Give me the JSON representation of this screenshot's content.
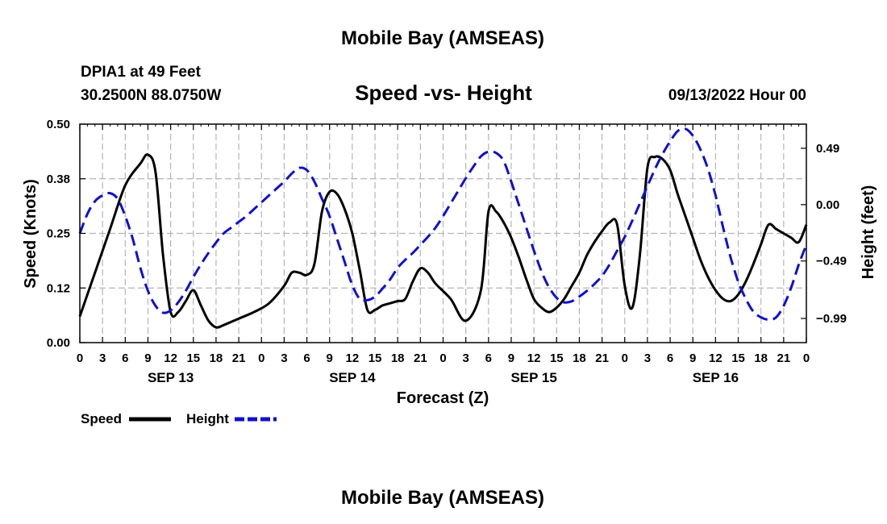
{
  "header": {
    "main_title": "Mobile Bay (AMSEAS)",
    "station": "DPIA1 at 49 Feet",
    "coords": "30.2500N  88.0750W",
    "date": "09/13/2022 Hour 00"
  },
  "footer": {
    "second_title": "Mobile Bay (AMSEAS)"
  },
  "chart_data": {
    "type": "line",
    "title": "Speed -vs- Height",
    "xlabel": "Forecast (Z)",
    "ylabel": "Speed (Knots)",
    "y2label": "Height (feet)",
    "x_range": [
      0,
      96
    ],
    "ylim": [
      0,
      0.5
    ],
    "y2lim": [
      -1.2,
      0.7
    ],
    "y_ticks": [
      0,
      0.125,
      0.25,
      0.375,
      0.5
    ],
    "y_tick_labels": [
      "0.00",
      "0.12",
      "0.25",
      "0.38",
      "0.50"
    ],
    "y2_ticks": [
      -0.99,
      -0.49,
      0.0,
      0.49
    ],
    "y2_tick_labels": [
      "−0.99",
      "−0.49",
      "0.00",
      "0.49"
    ],
    "x_ticks": [
      0,
      3,
      6,
      9,
      12,
      15,
      18,
      21,
      24,
      27,
      30,
      33,
      36,
      39,
      42,
      45,
      48,
      51,
      54,
      57,
      60,
      63,
      66,
      69,
      72,
      75,
      78,
      81,
      84,
      87,
      90,
      93,
      96
    ],
    "x_tick_labels": [
      "0",
      "3",
      "6",
      "9",
      "12",
      "15",
      "18",
      "21",
      "0",
      "3",
      "6",
      "9",
      "12",
      "15",
      "18",
      "21",
      "0",
      "3",
      "6",
      "9",
      "12",
      "15",
      "18",
      "21",
      "0",
      "3",
      "6",
      "9",
      "12",
      "15",
      "18",
      "21",
      "0"
    ],
    "day_labels": [
      {
        "x": 12,
        "label": "SEP 13"
      },
      {
        "x": 36,
        "label": "SEP 14"
      },
      {
        "x": 60,
        "label": "SEP 15"
      },
      {
        "x": 84,
        "label": "SEP 16"
      }
    ],
    "grid": true,
    "legend": [
      {
        "name": "Speed",
        "color": "#000000",
        "dash": "solid"
      },
      {
        "name": "Height",
        "color": "#1010cc",
        "dash": "dashed"
      }
    ],
    "series": [
      {
        "name": "Speed",
        "axis": "left",
        "color": "#000000",
        "x": [
          0,
          2,
          4,
          6,
          8,
          9,
          10,
          11,
          12,
          13,
          14,
          15,
          16,
          17,
          18,
          19,
          21,
          23,
          25,
          27,
          28,
          29,
          30,
          31,
          32,
          33,
          34,
          35,
          36,
          37,
          38,
          39,
          40,
          41,
          42,
          43,
          44,
          45,
          46,
          47,
          49,
          51,
          53,
          54,
          55,
          56,
          57,
          58,
          59,
          60,
          61,
          62,
          63,
          64,
          65,
          66,
          67,
          68,
          69,
          70,
          71,
          72,
          73,
          74,
          75,
          76,
          77,
          78,
          79,
          80,
          81,
          82,
          83,
          84,
          85,
          86,
          87,
          88,
          89,
          90,
          91,
          92,
          93,
          94,
          95,
          96
        ],
        "y": [
          0.06,
          0.16,
          0.26,
          0.36,
          0.41,
          0.43,
          0.39,
          0.2,
          0.07,
          0.07,
          0.095,
          0.12,
          0.085,
          0.05,
          0.035,
          0.04,
          0.055,
          0.07,
          0.09,
          0.13,
          0.16,
          0.16,
          0.155,
          0.18,
          0.3,
          0.345,
          0.34,
          0.305,
          0.25,
          0.165,
          0.075,
          0.075,
          0.085,
          0.09,
          0.095,
          0.1,
          0.14,
          0.17,
          0.16,
          0.135,
          0.1,
          0.05,
          0.12,
          0.3,
          0.3,
          0.275,
          0.24,
          0.195,
          0.145,
          0.1,
          0.08,
          0.07,
          0.08,
          0.1,
          0.13,
          0.16,
          0.2,
          0.23,
          0.255,
          0.275,
          0.27,
          0.13,
          0.08,
          0.2,
          0.4,
          0.425,
          0.42,
          0.395,
          0.34,
          0.29,
          0.24,
          0.19,
          0.15,
          0.12,
          0.1,
          0.095,
          0.11,
          0.14,
          0.18,
          0.225,
          0.27,
          0.26,
          0.25,
          0.24,
          0.23,
          0.27
        ]
      },
      {
        "name": "Height",
        "axis": "right",
        "color": "#1010cc",
        "x": [
          0,
          1,
          2,
          3,
          4,
          5,
          6,
          7,
          8,
          9,
          10,
          11,
          12,
          13,
          14,
          15,
          16,
          17,
          18,
          19,
          20,
          21,
          22,
          23,
          24,
          25,
          26,
          27,
          28,
          29,
          30,
          31,
          32,
          33,
          34,
          35,
          36,
          37,
          38,
          39,
          40,
          41,
          42,
          43,
          44,
          45,
          46,
          47,
          48,
          49,
          50,
          51,
          52,
          53,
          54,
          55,
          56,
          57,
          58,
          59,
          60,
          61,
          62,
          63,
          64,
          65,
          66,
          67,
          68,
          69,
          70,
          71,
          72,
          73,
          74,
          75,
          76,
          77,
          78,
          79,
          80,
          81,
          82,
          83,
          84,
          85,
          86,
          87,
          88,
          89,
          90,
          91,
          92,
          93,
          94,
          95,
          96
        ],
        "y": [
          -0.25,
          -0.08,
          0.03,
          0.08,
          0.1,
          0.05,
          -0.1,
          -0.3,
          -0.55,
          -0.75,
          -0.88,
          -0.94,
          -0.92,
          -0.85,
          -0.75,
          -0.63,
          -0.52,
          -0.42,
          -0.33,
          -0.25,
          -0.2,
          -0.15,
          -0.1,
          -0.04,
          0.02,
          0.08,
          0.14,
          0.2,
          0.27,
          0.32,
          0.3,
          0.2,
          0.05,
          -0.1,
          -0.3,
          -0.5,
          -0.7,
          -0.82,
          -0.83,
          -0.8,
          -0.73,
          -0.65,
          -0.55,
          -0.48,
          -0.42,
          -0.35,
          -0.28,
          -0.2,
          -0.1,
          0.01,
          0.12,
          0.23,
          0.33,
          0.42,
          0.46,
          0.45,
          0.38,
          0.2,
          0.0,
          -0.2,
          -0.4,
          -0.58,
          -0.72,
          -0.81,
          -0.85,
          -0.84,
          -0.8,
          -0.75,
          -0.69,
          -0.62,
          -0.52,
          -0.4,
          -0.28,
          -0.14,
          0.01,
          0.16,
          0.31,
          0.44,
          0.55,
          0.64,
          0.66,
          0.6,
          0.48,
          0.31,
          0.08,
          -0.2,
          -0.46,
          -0.67,
          -0.82,
          -0.93,
          -0.98,
          -1.0,
          -0.98,
          -0.88,
          -0.72,
          -0.52,
          -0.35
        ]
      }
    ]
  }
}
